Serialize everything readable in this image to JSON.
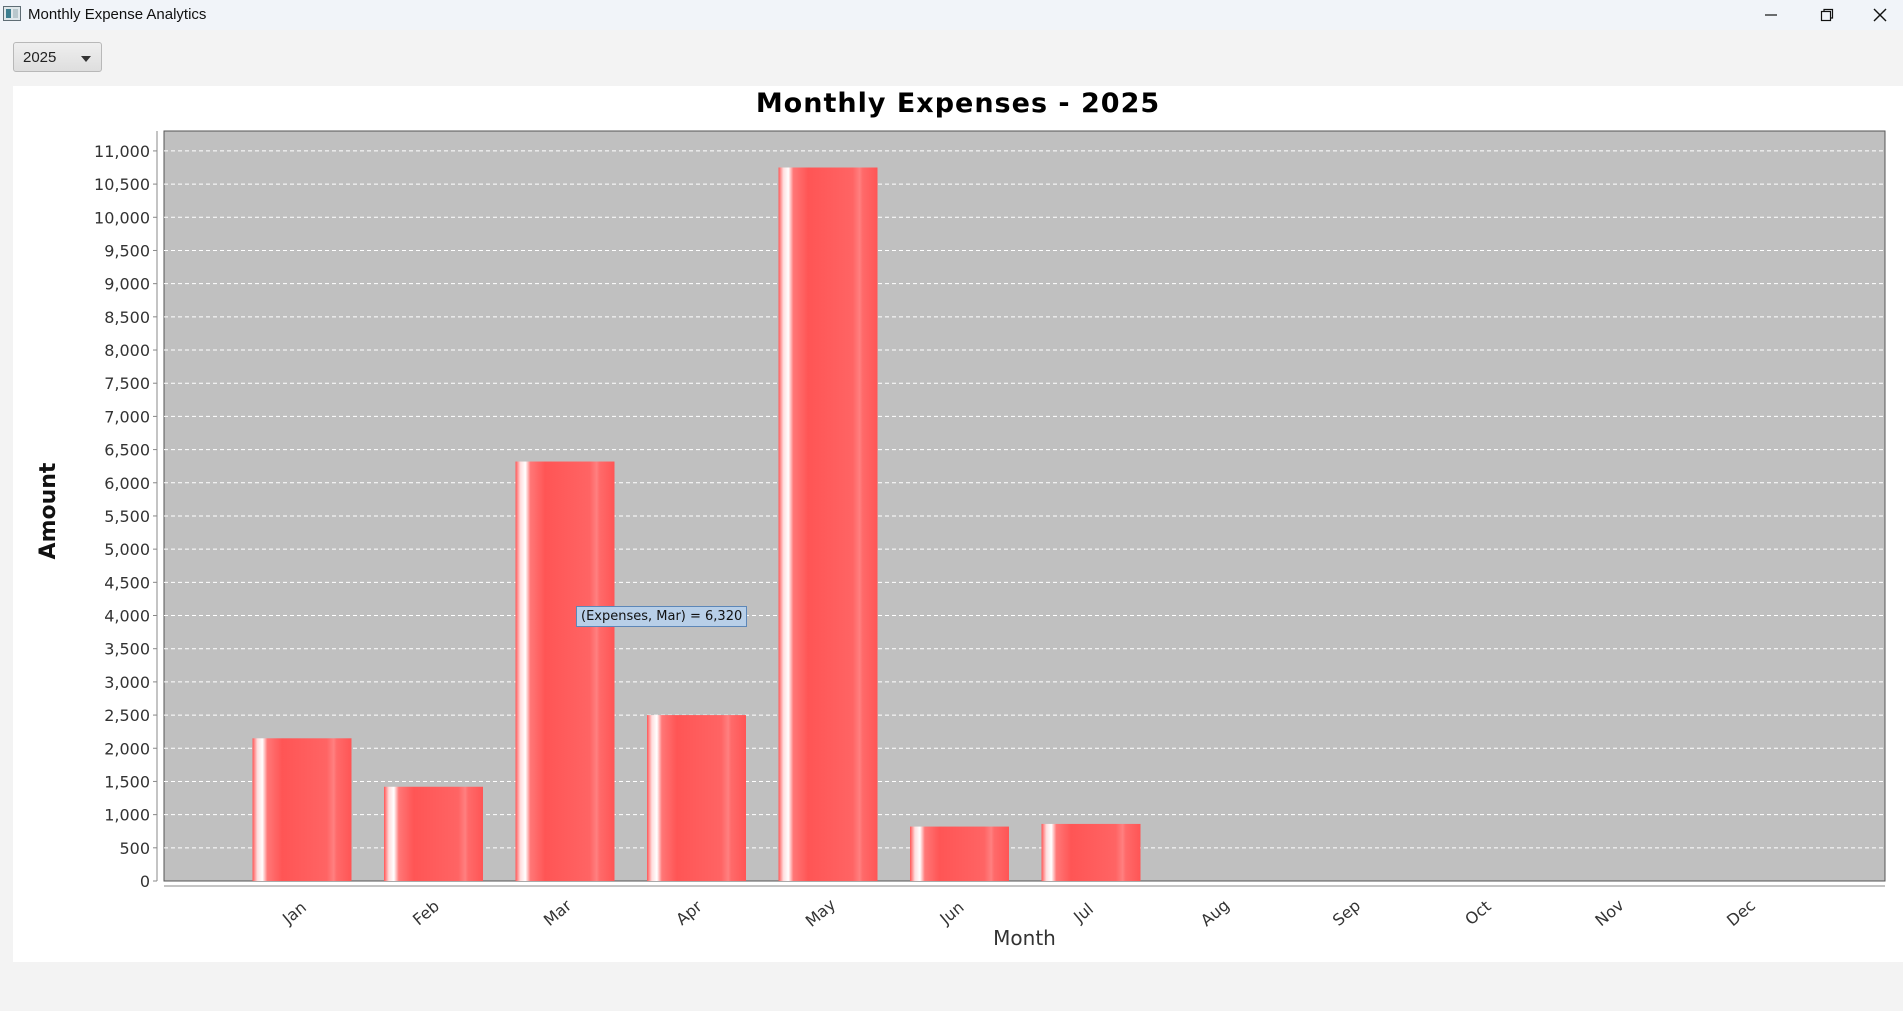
{
  "window": {
    "title": "Monthly Expense Analytics",
    "icons": [
      "app-icon",
      "minimize-icon",
      "restore-icon",
      "close-icon"
    ]
  },
  "toolbar": {
    "year_selected": "2025"
  },
  "tooltip": {
    "text": "(Expenses, Mar) = 6,320"
  },
  "chart_data": {
    "type": "bar",
    "title": "Monthly Expenses - 2025",
    "xlabel": "Month",
    "ylabel": "Amount",
    "categories": [
      "Jan",
      "Feb",
      "Mar",
      "Apr",
      "May",
      "Jun",
      "Jul",
      "Aug",
      "Sep",
      "Oct",
      "Nov",
      "Dec"
    ],
    "series": [
      {
        "values": [
          2150,
          1420,
          6320,
          2500,
          10750,
          820,
          860,
          0,
          0,
          0,
          0,
          0
        ],
        "color": "#ff5555"
      }
    ],
    "ylim": [
      0,
      11300
    ],
    "yticks": [
      0,
      500,
      1000,
      1500,
      2000,
      2500,
      3000,
      3500,
      4000,
      4500,
      5000,
      5500,
      6000,
      6500,
      7000,
      7500,
      8000,
      8500,
      9000,
      9500,
      10000,
      10500,
      11000
    ],
    "grid": true,
    "plot_background": "#c0c0c0",
    "grid_color": "#ffffff"
  }
}
